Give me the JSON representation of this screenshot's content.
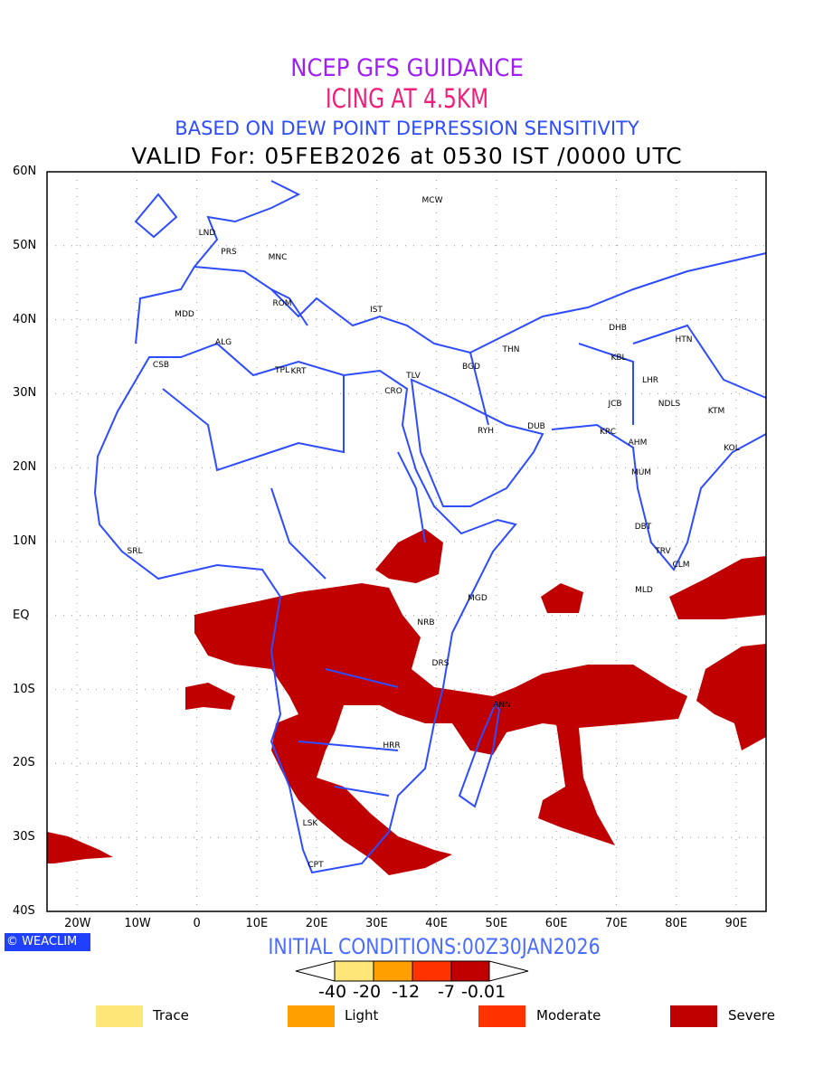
{
  "titles": {
    "line1": "NCEP GFS GUIDANCE",
    "line2": "ICING AT 4.5KM",
    "line3": "BASED ON DEW POINT DEPRESSION SENSITIVITY",
    "line4": "VALID For: 05FEB2026 at 0530 IST /0000 UTC"
  },
  "axes": {
    "lat_labels": [
      "60N",
      "50N",
      "40N",
      "30N",
      "20N",
      "10N",
      "EQ",
      "10S",
      "20S",
      "30S",
      "40S"
    ],
    "lon_labels": [
      "20W",
      "10W",
      "0",
      "10E",
      "20E",
      "30E",
      "40E",
      "50E",
      "60E",
      "70E",
      "80E",
      "90E"
    ]
  },
  "cities": [
    "MCW",
    "LND",
    "PRS",
    "MNC",
    "ROM",
    "IST",
    "MDD",
    "ALG",
    "CSB",
    "TPL",
    "KRT",
    "TLV",
    "CRO",
    "BGD",
    "THN",
    "RYH",
    "DUB",
    "DHB",
    "HTN",
    "KBL",
    "LHR",
    "JCB",
    "NDLS",
    "KTM",
    "KRC",
    "AHM",
    "KOL",
    "MUM",
    "DBT",
    "TRV",
    "CLM",
    "MLD",
    "SRL",
    "MGD",
    "NRB",
    "DRS",
    "ANN",
    "HRR",
    "LSK",
    "CPT"
  ],
  "logo": "WEACLIM",
  "initial_conditions": "INITIAL CONDITIONS:00Z30JAN2026",
  "colorbar": {
    "ticks": [
      "-40",
      "-20",
      "-12",
      "-7",
      "-0.01"
    ],
    "colors": [
      "#ffe678",
      "#ffa000",
      "#ff3200",
      "#c00000"
    ]
  },
  "legend": [
    {
      "label": "Trace",
      "color": "#ffe678"
    },
    {
      "label": "Light",
      "color": "#ffa000"
    },
    {
      "label": "Moderate",
      "color": "#ff3200"
    },
    {
      "label": "Severe",
      "color": "#c00000"
    }
  ],
  "colors": {
    "coast": "#2e4cff",
    "icing": "#c00000"
  }
}
